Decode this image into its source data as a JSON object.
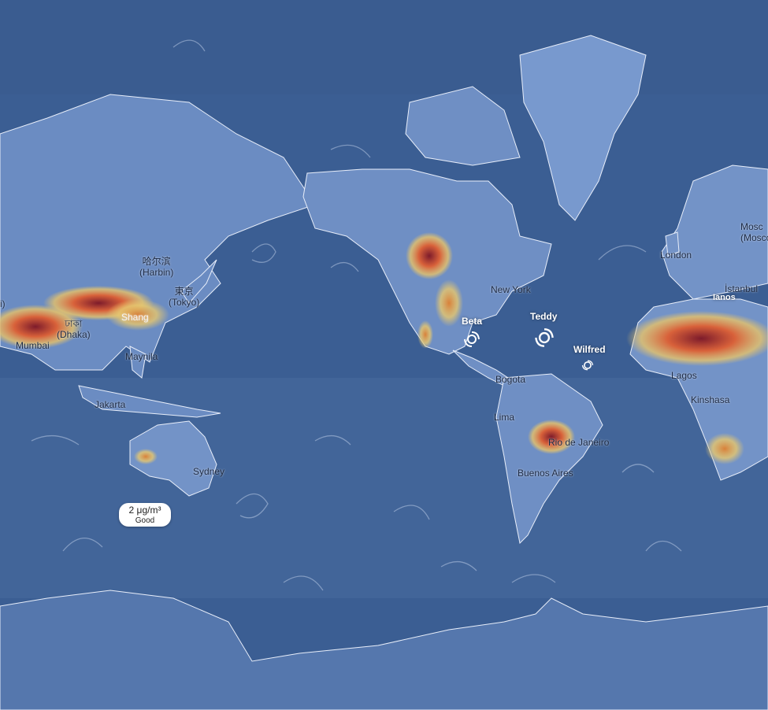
{
  "cities": [
    {
      "id": "harbin",
      "native": "哈尔滨",
      "label": "(Harbin)"
    },
    {
      "id": "tokyo",
      "native": "東京",
      "label": "(Tokyo)"
    },
    {
      "id": "dhaka",
      "native": "ঢাকা",
      "label": "(Dhaka)"
    },
    {
      "id": "mumbai",
      "native": "",
      "label": "Mumbai"
    },
    {
      "id": "shanghai",
      "native": "",
      "label": "Shang"
    },
    {
      "id": "manila",
      "native": "",
      "label": "Maynila"
    },
    {
      "id": "jakarta",
      "native": "",
      "label": "Jakarta"
    },
    {
      "id": "sydney",
      "native": "",
      "label": "Sydney"
    },
    {
      "id": "newyork",
      "native": "",
      "label": "New York"
    },
    {
      "id": "bogota",
      "native": "",
      "label": "Bogota"
    },
    {
      "id": "lima",
      "native": "",
      "label": "Lima"
    },
    {
      "id": "rio",
      "native": "",
      "label": "Rio de Janeiro"
    },
    {
      "id": "buenosaires",
      "native": "",
      "label": "Buenos Aires"
    },
    {
      "id": "london",
      "native": "",
      "label": "London"
    },
    {
      "id": "moscow",
      "native": "Mosc",
      "label": "(Mosco"
    },
    {
      "id": "istanbul",
      "native": "",
      "label": "İstanbul"
    },
    {
      "id": "lagos",
      "native": "",
      "label": "Lagos"
    },
    {
      "id": "kinshasa",
      "native": "",
      "label": "Kinshasa"
    },
    {
      "id": "edge_left",
      "native": "",
      "label": "i)"
    }
  ],
  "storms": [
    {
      "id": "beta",
      "name": "Beta"
    },
    {
      "id": "teddy",
      "name": "Teddy"
    },
    {
      "id": "wilfred",
      "name": "Wilfred"
    },
    {
      "id": "ianos",
      "name": "Ianos"
    }
  ],
  "tooltip": {
    "value": "2 μg/m³",
    "label": "Good"
  },
  "colors": {
    "ocean": "#3b5e93",
    "land": "#6f8fc4",
    "pollution_low": "#e6c56a",
    "pollution_mid": "#d8613a",
    "pollution_high": "#8a1d2c"
  }
}
